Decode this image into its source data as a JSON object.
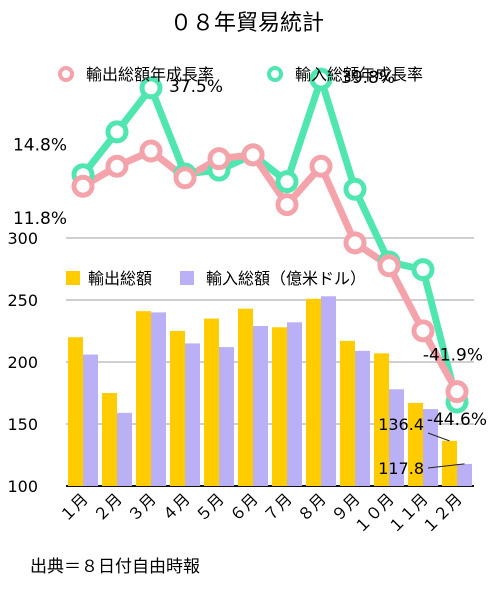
{
  "chart_data": [
    {
      "type": "line",
      "title": "０８年貿易統計",
      "categories": [
        "１月",
        "２月",
        "３月",
        "４月",
        "５月",
        "６月",
        "７月",
        "８月",
        "９月",
        "１０月",
        "１１月",
        "１２月"
      ],
      "series": [
        {
          "name": "輸出総額年成長率",
          "color": "#f4a3aa",
          "values": [
            11.8,
            17.0,
            21.0,
            14.0,
            19.0,
            20.0,
            7.0,
            17.0,
            -3.0,
            -9.0,
            -26.0,
            -41.9
          ]
        },
        {
          "name": "輸入総額年成長率",
          "color": "#4fe6b0",
          "values": [
            14.8,
            26.0,
            37.5,
            15.0,
            16.0,
            20.0,
            13.0,
            39.8,
            11.0,
            -8.0,
            -10.0,
            -44.6
          ]
        }
      ],
      "data_labels": [
        {
          "series": 0,
          "index": 0,
          "text": "11.8%"
        },
        {
          "series": 1,
          "index": 0,
          "text": "14.8%"
        },
        {
          "series": 1,
          "index": 2,
          "text": "37.5%"
        },
        {
          "series": 1,
          "index": 7,
          "text": "39.8%"
        },
        {
          "series": 0,
          "index": 11,
          "text": "-41.9%"
        },
        {
          "series": 1,
          "index": 11,
          "text": "-44.6%"
        }
      ],
      "ylim": [
        -48,
        44
      ],
      "legend": "top"
    },
    {
      "type": "bar",
      "categories": [
        "１月",
        "２月",
        "３月",
        "４月",
        "５月",
        "６月",
        "７月",
        "８月",
        "９月",
        "１０月",
        "１１月",
        "１２月"
      ],
      "series": [
        {
          "name": "輸出総額",
          "color": "#ffcc00",
          "values": [
            220,
            175,
            241,
            225,
            235,
            243,
            228,
            251,
            217,
            207,
            167,
            136.4
          ]
        },
        {
          "name": "輸入総額（億米ドル）",
          "color": "#b9b0f5",
          "values": [
            206,
            159,
            240,
            215,
            212,
            229,
            232,
            253,
            209,
            178,
            162,
            117.8
          ]
        }
      ],
      "yticks": [
        100,
        150,
        200,
        250,
        300
      ],
      "ylim": [
        100,
        300
      ],
      "grid": true,
      "legend": "top-left",
      "data_labels": [
        {
          "series": 0,
          "index": 11,
          "text": "136.4"
        },
        {
          "series": 1,
          "index": 11,
          "text": "117.8"
        }
      ]
    }
  ],
  "source_note": "出典＝８日付自由時報"
}
